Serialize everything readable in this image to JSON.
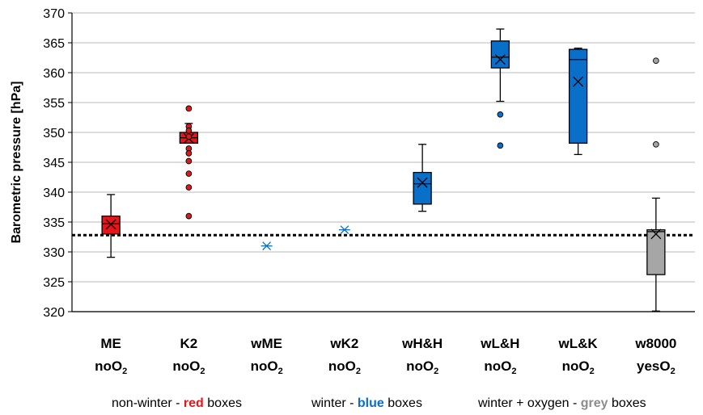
{
  "chart_data": {
    "type": "box",
    "ylabel": "Barometric pressure [hPa]",
    "ylim": [
      320,
      370
    ],
    "yticks": [
      320,
      325,
      330,
      335,
      340,
      345,
      350,
      355,
      360,
      365,
      370
    ],
    "grid": true,
    "reference_line": {
      "value": 332.8,
      "style": "dotted"
    },
    "categories": [
      {
        "name": "ME",
        "gas_prefix": "no",
        "group": "non-winter"
      },
      {
        "name": "K2",
        "gas_prefix": "no",
        "group": "non-winter"
      },
      {
        "name": "wME",
        "gas_prefix": "no",
        "group": "winter"
      },
      {
        "name": "wK2",
        "gas_prefix": "no",
        "group": "winter"
      },
      {
        "name": "wH&H",
        "gas_prefix": "no",
        "group": "winter"
      },
      {
        "name": "wL&H",
        "gas_prefix": "no",
        "group": "winter"
      },
      {
        "name": "wL&K",
        "gas_prefix": "no",
        "group": "winter"
      },
      {
        "name": "w8000",
        "gas_prefix": "yes",
        "group": "winter + oxygen"
      }
    ],
    "gas_symbol": "O",
    "gas_subscript": "2",
    "boxes": [
      {
        "category": "ME",
        "min": 329.1,
        "q1": 333.0,
        "median": 334.7,
        "q3": 336.0,
        "max": 339.6,
        "mean": 334.6,
        "outliers": []
      },
      {
        "category": "K2",
        "min": 348.2,
        "q1": 348.2,
        "median": 349.1,
        "q3": 350.0,
        "max": 351.5,
        "mean": 349.0,
        "outliers": [
          354.0,
          351.0,
          350.3,
          349.3,
          347.3,
          346.5,
          345.2,
          343.1,
          340.8,
          336.0
        ]
      },
      {
        "category": "wME",
        "mean": 331.0
      },
      {
        "category": "wK2",
        "mean": 333.7
      },
      {
        "category": "wH&H",
        "min": 336.8,
        "q1": 338.0,
        "median": 341.4,
        "q3": 343.3,
        "max": 348.0,
        "mean": 341.6,
        "outliers": []
      },
      {
        "category": "wL&H",
        "min": 355.2,
        "q1": 360.8,
        "median": 362.6,
        "q3": 365.3,
        "max": 367.3,
        "mean": 362.2,
        "outliers": [
          353.0,
          347.8
        ]
      },
      {
        "category": "wL&K",
        "min": 346.3,
        "q1": 348.2,
        "median": 362.2,
        "q3": 363.9,
        "max": 364.1,
        "mean": 358.5,
        "outliers": []
      },
      {
        "category": "w8000",
        "min": 320.1,
        "q1": 326.2,
        "median": 333.4,
        "q3": 333.7,
        "max": 339.0,
        "mean": 333.0,
        "outliers": [
          362.0,
          348.0
        ]
      }
    ],
    "colors": {
      "non-winter": "#e8141a",
      "winter": "#0a6fc9",
      "winter + oxygen": "#a6a6a6",
      "mean_only": "#0a6fc9"
    }
  },
  "legend": {
    "g1_prefix": "non-winter - ",
    "g1_word": "red",
    "g1_suffix": " boxes",
    "g2_prefix": "winter - ",
    "g2_word": "blue",
    "g2_suffix": " boxes",
    "g3_prefix": "winter + oxygen - ",
    "g3_word": "grey",
    "g3_suffix": " boxes"
  },
  "legend_colors": {
    "red": "#e8141a",
    "blue": "#0a6fc9",
    "grey": "#8c8c8c"
  }
}
